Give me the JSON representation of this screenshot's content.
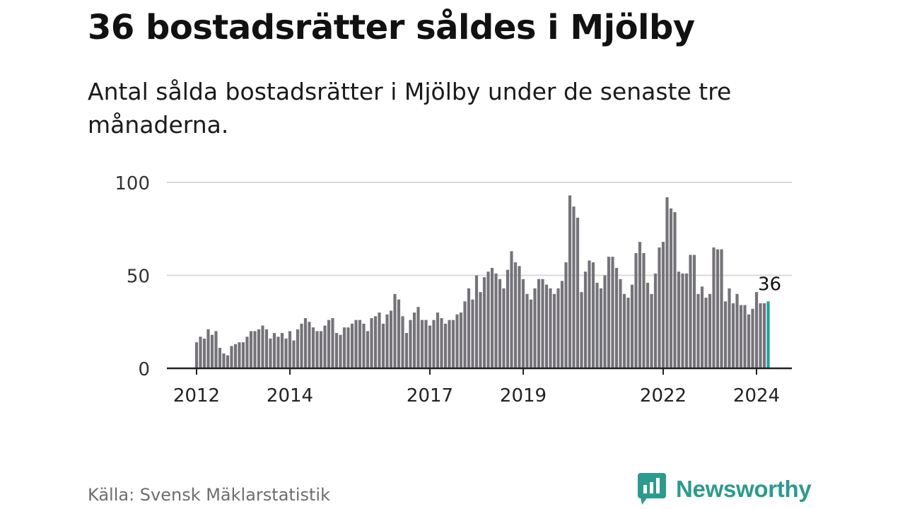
{
  "header": {
    "title": "36 bostadsrätter såldes i Mjölby",
    "subtitle": "Antal sålda bostadsrätter i Mjölby under de senaste tre månaderna."
  },
  "footer": {
    "source": "Källa: Svensk Mäklarstatistik",
    "brand": "Newsworthy"
  },
  "colors": {
    "bar": "#757379",
    "highlight": "#1fa39a",
    "grid": "#d9d9d9",
    "axis": "#222222",
    "brand": "#2d9a8e"
  },
  "chart_data": {
    "type": "bar",
    "title": "36 bostadsrätter såldes i Mjölby",
    "xlabel": "",
    "ylabel": "",
    "ylim": [
      0,
      100
    ],
    "yticks": [
      0,
      50,
      100
    ],
    "grid": true,
    "start": "2012-01",
    "interval": "month",
    "xticks": [
      {
        "label": "2012",
        "index": 0
      },
      {
        "label": "2014",
        "index": 24
      },
      {
        "label": "2017",
        "index": 60
      },
      {
        "label": "2019",
        "index": 84
      },
      {
        "label": "2022",
        "index": 120
      },
      {
        "label": "2024",
        "index": 144
      }
    ],
    "values": [
      14,
      17,
      16,
      21,
      18,
      20,
      11,
      8,
      7,
      12,
      13,
      14,
      14,
      17,
      20,
      20,
      21,
      23,
      21,
      16,
      19,
      17,
      19,
      16,
      20,
      15,
      21,
      24,
      27,
      25,
      22,
      20,
      20,
      23,
      26,
      27,
      19,
      18,
      22,
      22,
      24,
      26,
      26,
      24,
      20,
      27,
      28,
      30,
      24,
      29,
      31,
      40,
      37,
      28,
      19,
      26,
      30,
      33,
      26,
      26,
      23,
      26,
      30,
      27,
      24,
      26,
      26,
      29,
      30,
      36,
      43,
      37,
      50,
      41,
      49,
      52,
      54,
      51,
      48,
      43,
      53,
      63,
      57,
      55,
      48,
      40,
      37,
      43,
      48,
      48,
      45,
      43,
      40,
      43,
      47,
      57,
      93,
      87,
      81,
      41,
      52,
      58,
      57,
      46,
      43,
      50,
      60,
      60,
      54,
      48,
      40,
      38,
      45,
      62,
      68,
      62,
      46,
      40,
      51,
      65,
      68,
      92,
      86,
      84,
      52,
      51,
      51,
      61,
      61,
      40,
      44,
      38,
      40,
      65,
      64,
      64,
      36,
      43,
      35,
      40,
      34,
      34,
      29,
      32,
      41,
      35,
      35,
      36
    ],
    "highlight_index": 147,
    "highlight_label": "36"
  }
}
